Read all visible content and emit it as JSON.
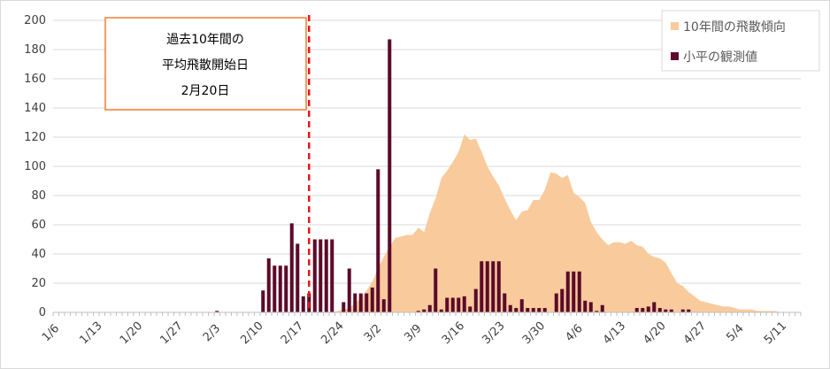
{
  "chart_data": {
    "type": "bar",
    "ylim": [
      0,
      200
    ],
    "yticks": [
      0,
      20,
      40,
      60,
      80,
      100,
      120,
      140,
      160,
      180,
      200
    ],
    "x_start_label": "1/6",
    "num_days": 130,
    "xtick_labels": [
      "1/6",
      "1/13",
      "1/20",
      "1/27",
      "2/3",
      "2/10",
      "2/17",
      "2/24",
      "3/2",
      "3/9",
      "3/16",
      "3/23",
      "3/30",
      "4/6",
      "4/13",
      "4/20",
      "4/27",
      "5/4",
      "5/11"
    ],
    "grid": true,
    "legend_position": "top-right",
    "series": [
      {
        "name": "10年間の飛散傾向",
        "type": "area",
        "color": "#f9cb9c",
        "points": [
          [
            48,
            0
          ],
          [
            49,
            1
          ],
          [
            50,
            2
          ],
          [
            51,
            3
          ],
          [
            52,
            6
          ],
          [
            53,
            10
          ],
          [
            54,
            15
          ],
          [
            55,
            21
          ],
          [
            56,
            30
          ],
          [
            57,
            38
          ],
          [
            58,
            45
          ],
          [
            59,
            51
          ],
          [
            60,
            52
          ],
          [
            61,
            53
          ],
          [
            62,
            53
          ],
          [
            63,
            58
          ],
          [
            64,
            55
          ],
          [
            65,
            68
          ],
          [
            66,
            78
          ],
          [
            67,
            92
          ],
          [
            68,
            97
          ],
          [
            69,
            103
          ],
          [
            70,
            110
          ],
          [
            71,
            122
          ],
          [
            72,
            118
          ],
          [
            73,
            119
          ],
          [
            74,
            110
          ],
          [
            75,
            100
          ],
          [
            76,
            93
          ],
          [
            77,
            87
          ],
          [
            78,
            78
          ],
          [
            79,
            70
          ],
          [
            80,
            63
          ],
          [
            81,
            69
          ],
          [
            82,
            70
          ],
          [
            83,
            77
          ],
          [
            84,
            77
          ],
          [
            85,
            84
          ],
          [
            86,
            96
          ],
          [
            87,
            95
          ],
          [
            88,
            92
          ],
          [
            89,
            94
          ],
          [
            90,
            82
          ],
          [
            91,
            79
          ],
          [
            92,
            75
          ],
          [
            93,
            62
          ],
          [
            94,
            55
          ],
          [
            95,
            50
          ],
          [
            96,
            46
          ],
          [
            97,
            48
          ],
          [
            98,
            48
          ],
          [
            99,
            47
          ],
          [
            100,
            49
          ],
          [
            101,
            46
          ],
          [
            102,
            45
          ],
          [
            103,
            40
          ],
          [
            104,
            38
          ],
          [
            105,
            37
          ],
          [
            106,
            34
          ],
          [
            107,
            27
          ],
          [
            108,
            20
          ],
          [
            109,
            18
          ],
          [
            110,
            14
          ],
          [
            111,
            11
          ],
          [
            112,
            8
          ],
          [
            113,
            7
          ],
          [
            114,
            6
          ],
          [
            115,
            5
          ],
          [
            116,
            4
          ],
          [
            117,
            4
          ],
          [
            118,
            3
          ],
          [
            119,
            2
          ],
          [
            120,
            2
          ],
          [
            121,
            2
          ],
          [
            122,
            1
          ],
          [
            123,
            1
          ],
          [
            124,
            1
          ],
          [
            125,
            1
          ],
          [
            126,
            0
          ]
        ]
      },
      {
        "name": "小平の観測値",
        "type": "bar",
        "color": "#5c0a2a",
        "points": [
          [
            28,
            1
          ],
          [
            36,
            15
          ],
          [
            37,
            37
          ],
          [
            38,
            32
          ],
          [
            39,
            32
          ],
          [
            40,
            32
          ],
          [
            41,
            61
          ],
          [
            42,
            47
          ],
          [
            43,
            11
          ],
          [
            44,
            13
          ],
          [
            45,
            50
          ],
          [
            46,
            50
          ],
          [
            47,
            50
          ],
          [
            48,
            50
          ],
          [
            50,
            7
          ],
          [
            51,
            30
          ],
          [
            52,
            13
          ],
          [
            53,
            13
          ],
          [
            54,
            13
          ],
          [
            55,
            17
          ],
          [
            56,
            98
          ],
          [
            57,
            9
          ],
          [
            58,
            187
          ],
          [
            63,
            1
          ],
          [
            64,
            2
          ],
          [
            65,
            5
          ],
          [
            66,
            30
          ],
          [
            67,
            2
          ],
          [
            68,
            10
          ],
          [
            69,
            10
          ],
          [
            70,
            10
          ],
          [
            71,
            11
          ],
          [
            72,
            4
          ],
          [
            73,
            16
          ],
          [
            74,
            35
          ],
          [
            75,
            35
          ],
          [
            76,
            35
          ],
          [
            77,
            35
          ],
          [
            78,
            13
          ],
          [
            79,
            5
          ],
          [
            80,
            3
          ],
          [
            81,
            9
          ],
          [
            82,
            3
          ],
          [
            83,
            3
          ],
          [
            84,
            3
          ],
          [
            85,
            3
          ],
          [
            87,
            13
          ],
          [
            88,
            16
          ],
          [
            89,
            28
          ],
          [
            90,
            28
          ],
          [
            91,
            28
          ],
          [
            92,
            8
          ],
          [
            93,
            7
          ],
          [
            94,
            1
          ],
          [
            95,
            5
          ],
          [
            101,
            3
          ],
          [
            102,
            3
          ],
          [
            103,
            4
          ],
          [
            104,
            7
          ],
          [
            105,
            3
          ],
          [
            106,
            2
          ],
          [
            107,
            2
          ],
          [
            109,
            2
          ],
          [
            110,
            2
          ]
        ]
      }
    ],
    "reference_line": {
      "day": 44.5,
      "color": "#e31a1c",
      "style": "dashed"
    },
    "annotation": {
      "lines": [
        "過去10年間の",
        "平均飛散開始日",
        "2月20日"
      ],
      "border_color": "#ed7d31"
    }
  }
}
